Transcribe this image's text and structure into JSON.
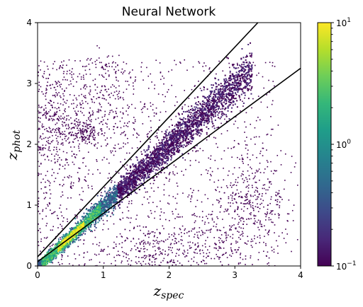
{
  "chart_data": {
    "type": "heatmap",
    "title": "Neural Network",
    "xlabel": {
      "main": "z",
      "sub": "spec"
    },
    "ylabel": {
      "main": "z",
      "sub": "phot"
    },
    "xlim": [
      0,
      4
    ],
    "ylim": [
      0,
      4
    ],
    "x_ticks": [
      "0",
      "1",
      "2",
      "3",
      "4"
    ],
    "y_ticks": [
      "0",
      "1",
      "2",
      "3",
      "4"
    ],
    "colorbar": {
      "scale": "log",
      "min": 0.1,
      "max": 10,
      "ticks": [
        {
          "base": "10",
          "exp": "1",
          "value": 10
        },
        {
          "base": "10",
          "exp": "0",
          "value": 1
        },
        {
          "base": "10",
          "exp": "−1",
          "value": 0.1
        }
      ],
      "colormap": "viridis"
    },
    "reference_lines": [
      {
        "points": [
          [
            0,
            0.15
          ],
          [
            3.35,
            4.0
          ]
        ]
      },
      {
        "points": [
          [
            0,
            0.07
          ],
          [
            4.0,
            3.25
          ]
        ]
      }
    ],
    "density_ridge": {
      "center_line": "z_phot ≈ z_spec",
      "peak_at": [
        0.5,
        0.5
      ],
      "extends_to": [
        3.2,
        3.0
      ]
    },
    "grid": false,
    "colors": {
      "viridis": [
        "#440154",
        "#482878",
        "#3e4989",
        "#31688e",
        "#26828e",
        "#1f9e89",
        "#35b779",
        "#6ece58",
        "#b5de2b",
        "#fde725"
      ],
      "lines": "#000000"
    }
  }
}
